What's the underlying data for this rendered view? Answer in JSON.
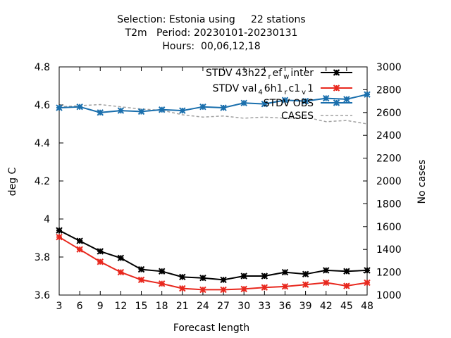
{
  "chart_data": {
    "type": "line",
    "title_lines": [
      "Selection: Estonia using     22 stations",
      "T2m   Period: 20230101-20230131",
      "Hours:  00,06,12,18"
    ],
    "xlabel": "Forecast length",
    "ylabel": "deg C",
    "y2label": "No cases",
    "x": [
      3,
      6,
      9,
      12,
      15,
      18,
      21,
      24,
      27,
      30,
      33,
      36,
      39,
      42,
      45,
      48
    ],
    "xticks": [
      "3",
      "6",
      "9",
      "12",
      "15",
      "18",
      "21",
      "24",
      "27",
      "30",
      "33",
      "36",
      "39",
      "42",
      "45",
      "48"
    ],
    "xlim": [
      3,
      48
    ],
    "ylim": [
      3.6,
      4.8
    ],
    "yticks": [
      "3.6",
      "3.8",
      "4",
      "4.2",
      "4.4",
      "4.6",
      "4.8"
    ],
    "y2lim": [
      1000,
      3000
    ],
    "y2ticks": [
      "1000",
      "1200",
      "1400",
      "1600",
      "1800",
      "2000",
      "2200",
      "2400",
      "2600",
      "2800",
      "3000"
    ],
    "grid": false,
    "legend_position": "top-right",
    "series": [
      {
        "name": "STDV 43h22_ref_winter",
        "legend": {
          "parts": [
            "STDV 43h22",
            "r",
            "ef",
            "w",
            "inter"
          ]
        },
        "axis": "y1",
        "color": "#000000",
        "marker": "star",
        "dashed": false,
        "values": [
          3.94,
          3.885,
          3.83,
          3.795,
          3.735,
          3.725,
          3.695,
          3.69,
          3.68,
          3.7,
          3.7,
          3.72,
          3.71,
          3.73,
          3.725,
          3.73
        ]
      },
      {
        "name": "STDV val_46h1_rc1_v1",
        "legend": {
          "parts": [
            "STDV val",
            "4",
            "6h1",
            "r",
            "c1",
            "v",
            "1"
          ]
        },
        "axis": "y1",
        "color": "#e8281e",
        "marker": "star",
        "dashed": false,
        "values": [
          3.905,
          3.84,
          3.775,
          3.72,
          3.68,
          3.66,
          3.635,
          3.628,
          3.628,
          3.632,
          3.64,
          3.645,
          3.655,
          3.665,
          3.648,
          3.665
        ]
      },
      {
        "name": "STDV OBS",
        "legend": {
          "parts": [
            "STDV OBS"
          ]
        },
        "axis": "y1",
        "color": "#1a6fad",
        "marker": "star",
        "dashed": false,
        "values": [
          4.585,
          4.59,
          4.56,
          4.57,
          4.565,
          4.575,
          4.57,
          4.59,
          4.585,
          4.61,
          4.605,
          4.625,
          4.62,
          4.635,
          4.63,
          4.655
        ]
      },
      {
        "name": "CASES",
        "legend": {
          "parts": [
            "CASES"
          ]
        },
        "axis": "y2",
        "color": "#a0a0a0",
        "marker": "none",
        "dashed": true,
        "values": [
          2650,
          2660,
          2670,
          2650,
          2630,
          2620,
          2580,
          2560,
          2570,
          2550,
          2560,
          2550,
          2560,
          2520,
          2530,
          2500
        ]
      }
    ]
  }
}
